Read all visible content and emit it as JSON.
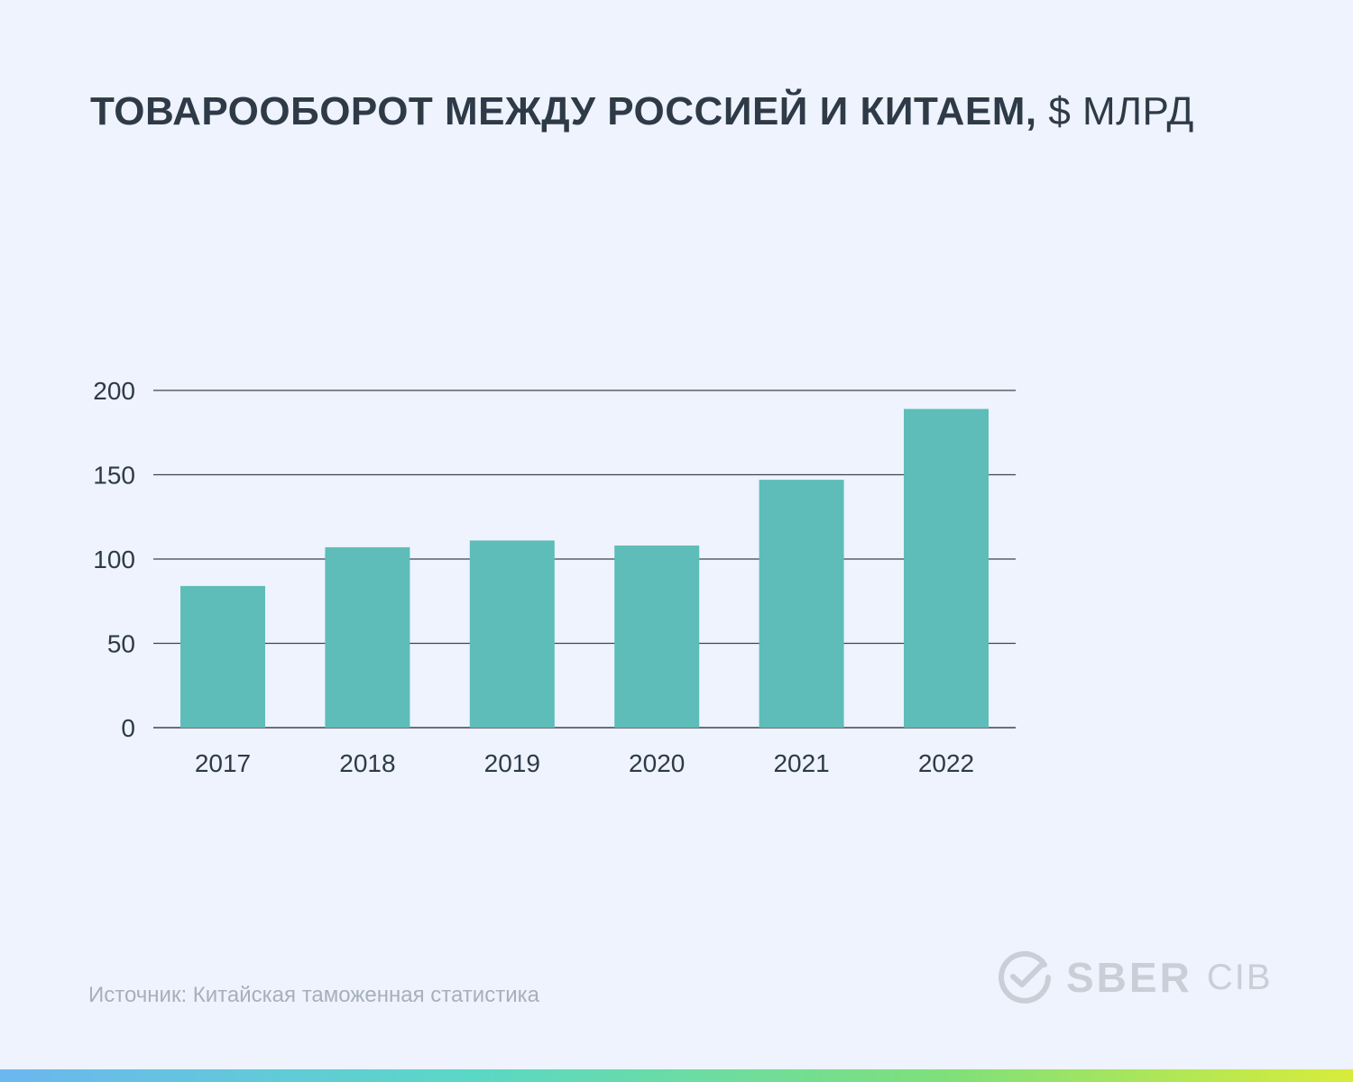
{
  "title": {
    "main": "ТОВАРООБОРОТ МЕЖДУ РОССИЕЙ И КИТАЕМ,",
    "unit": "$ МЛРД"
  },
  "source": "Источник: Китайская таможенная статистика",
  "logo": {
    "brand": "SBER",
    "sub": "CIB",
    "icon": "sber-check-circle-icon"
  },
  "colors": {
    "background": "#eef3fd",
    "bar": "#5ebdb8",
    "grid": "#3c4650",
    "text": "#2e3a47",
    "muted": "#a7b0ba",
    "stripe": [
      "#6bb7f0",
      "#5ad8c6",
      "#7fe07a",
      "#d8ec3a"
    ]
  },
  "chart_data": {
    "type": "bar",
    "title": "ТОВАРООБОРОТ МЕЖДУ РОССИЕЙ И КИТАЕМ, $ МЛРД",
    "categories": [
      "2017",
      "2018",
      "2019",
      "2020",
      "2021",
      "2022"
    ],
    "values": [
      84,
      107,
      111,
      108,
      147,
      189
    ],
    "xlabel": "",
    "ylabel": "",
    "ylim": [
      0,
      200
    ],
    "yticks": [
      0,
      50,
      100,
      150,
      200
    ],
    "grid": true,
    "legend": "none"
  }
}
